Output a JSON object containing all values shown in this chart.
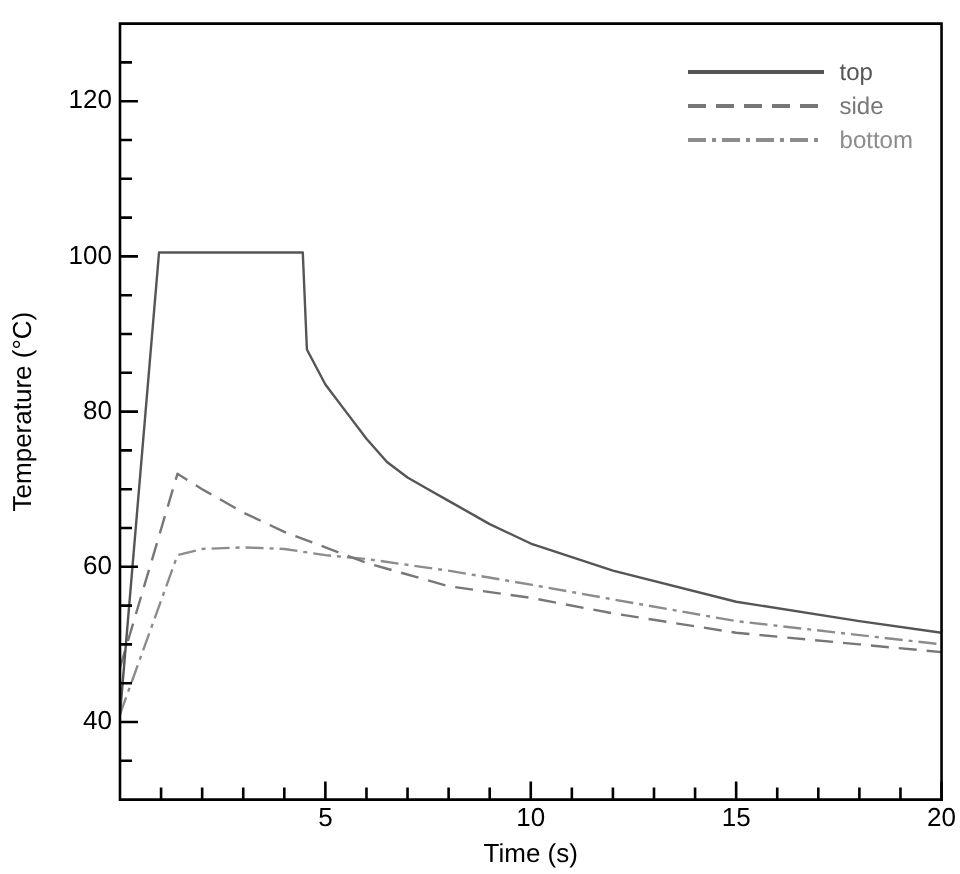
{
  "chart_data": {
    "type": "line",
    "xlabel": "Time (s)",
    "ylabel": "Temperature (°C)",
    "xlim": [
      0,
      20
    ],
    "ylim": [
      30,
      130
    ],
    "xticks": [
      {
        "value": 1,
        "label": null
      },
      {
        "value": 2,
        "label": null
      },
      {
        "value": 3,
        "label": null
      },
      {
        "value": 4,
        "label": null
      },
      5,
      {
        "value": 6,
        "label": null
      },
      {
        "value": 7,
        "label": null
      },
      {
        "value": 8,
        "label": null
      },
      {
        "value": 9,
        "label": null
      },
      10,
      {
        "value": 11,
        "label": null
      },
      {
        "value": 12,
        "label": null
      },
      {
        "value": 13,
        "label": null
      },
      {
        "value": 14,
        "label": null
      },
      15,
      {
        "value": 16,
        "label": null
      },
      {
        "value": 17,
        "label": null
      },
      {
        "value": 18,
        "label": null
      },
      {
        "value": 19,
        "label": null
      },
      20
    ],
    "yticks": [
      {
        "value": 35,
        "label": null
      },
      40,
      {
        "value": 45,
        "label": null
      },
      {
        "value": 50,
        "label": null
      },
      {
        "value": 55,
        "label": null
      },
      60,
      {
        "value": 65,
        "label": null
      },
      {
        "value": 70,
        "label": null
      },
      {
        "value": 75,
        "label": null
      },
      80,
      {
        "value": 85,
        "label": null
      },
      {
        "value": 90,
        "label": null
      },
      {
        "value": 95,
        "label": null
      },
      100,
      {
        "value": 105,
        "label": null
      },
      {
        "value": 110,
        "label": null
      },
      {
        "value": 115,
        "label": null
      },
      120,
      {
        "value": 125,
        "label": null
      }
    ],
    "grid": false,
    "legend": "top right",
    "marker": "none",
    "series": [
      {
        "name": "top",
        "color": "#555555",
        "line_style": "solid",
        "x": [
          0,
          0.95,
          1.5,
          2.5,
          3.5,
          4.3,
          4.45,
          4.55,
          5,
          5.5,
          6,
          6.5,
          7,
          7.5,
          8,
          9,
          10,
          12,
          15,
          18,
          20
        ],
        "values": [
          41,
          100.5,
          100.5,
          100.5,
          100.5,
          100.5,
          100.5,
          88,
          83.5,
          80,
          76.5,
          73.5,
          71.5,
          70,
          68.5,
          65.5,
          63,
          59.5,
          55.5,
          53,
          51.5
        ]
      },
      {
        "name": "side",
        "color": "#777777",
        "line_style": "dashed",
        "x": [
          0,
          1.4,
          2,
          3,
          4,
          5,
          6,
          8,
          10,
          12,
          15,
          18,
          20
        ],
        "values": [
          47,
          72,
          70,
          67,
          64.5,
          62.5,
          60.5,
          57.5,
          56,
          54,
          51.5,
          50,
          49
        ]
      },
      {
        "name": "bottom",
        "color": "#8c8c8c",
        "line_style": "dashdot",
        "x": [
          0,
          1.4,
          2,
          3,
          4,
          5,
          6,
          8,
          10,
          12,
          15,
          18,
          20
        ],
        "values": [
          41,
          61.5,
          62.3,
          62.5,
          62.3,
          61.5,
          61,
          59.5,
          57.7,
          55.8,
          53,
          51.2,
          50
        ]
      }
    ]
  }
}
